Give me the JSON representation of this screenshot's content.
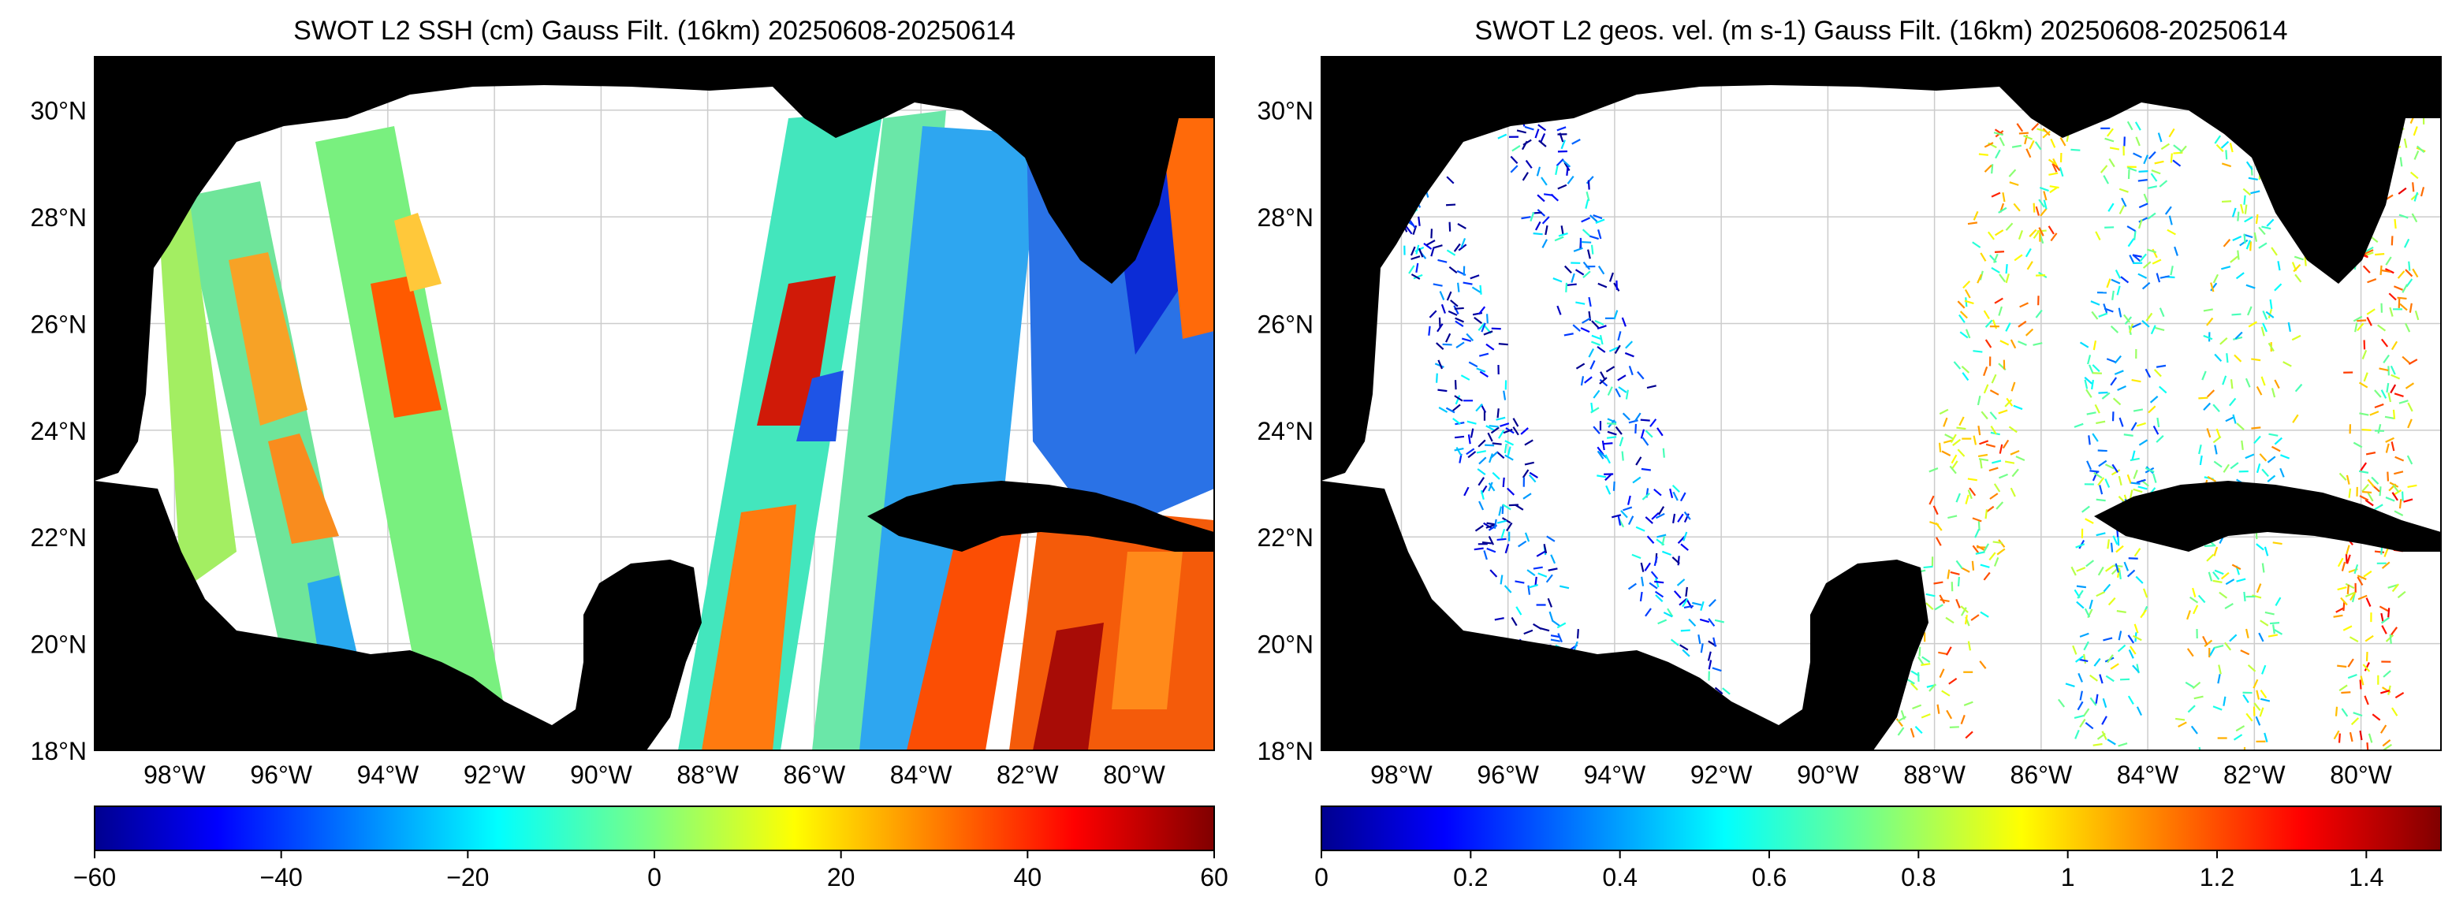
{
  "panels": [
    {
      "title": "SWOT L2 SSH (cm) Gauss Filt. (16km) 20250608-20250614",
      "lat_labels": [
        "30°N",
        "28°N",
        "26°N",
        "24°N",
        "22°N",
        "20°N",
        "18°N"
      ],
      "lon_labels": [
        "98°W",
        "96°W",
        "94°W",
        "92°W",
        "90°W",
        "88°W",
        "86°W",
        "84°W",
        "82°W",
        "80°W"
      ],
      "colorbar": {
        "ticks": [
          "−60",
          "−40",
          "−20",
          "0",
          "20",
          "40",
          "60"
        ],
        "range": [
          -60,
          60
        ],
        "colormap": "jet"
      }
    },
    {
      "title": "SWOT L2 geos. vel. (m s-1) Gauss Filt. (16km) 20250608-20250614",
      "lat_labels": [
        "30°N",
        "28°N",
        "26°N",
        "24°N",
        "22°N",
        "20°N",
        "18°N"
      ],
      "lon_labels": [
        "98°W",
        "96°W",
        "94°W",
        "92°W",
        "90°W",
        "88°W",
        "86°W",
        "84°W",
        "82°W",
        "80°W"
      ],
      "colorbar": {
        "ticks": [
          "0",
          "0.2",
          "0.4",
          "0.6",
          "0.8",
          "1",
          "1.2",
          "1.4"
        ],
        "range": [
          0,
          1.5
        ],
        "colormap": "jet"
      }
    }
  ],
  "map": {
    "land_color": "#000000",
    "ocean_color": "#ffffff",
    "grid_color": "#cccccc",
    "lat_range": [
      18,
      31
    ],
    "lon_range": [
      -99.5,
      -78.5
    ]
  }
}
